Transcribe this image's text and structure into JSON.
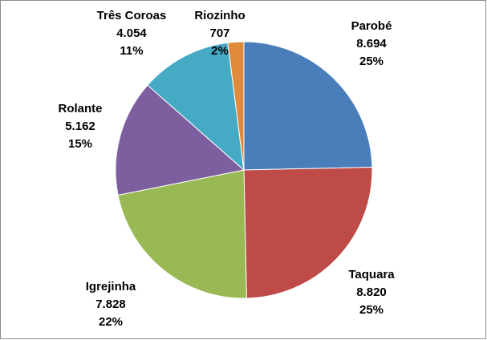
{
  "chart_data": {
    "type": "pie",
    "categories": [
      "Parobé",
      "Taquara",
      "Igrejinha",
      "Rolante",
      "Três Coroas",
      "Riozinho"
    ],
    "values": [
      8694,
      8820,
      7828,
      5162,
      4054,
      707
    ],
    "value_labels": [
      "8.694",
      "8.820",
      "7.828",
      "5.162",
      "4.054",
      "707"
    ],
    "percent_labels": [
      "25%",
      "25%",
      "22%",
      "15%",
      "11%",
      "2%"
    ],
    "colors": [
      "#4a7ebb",
      "#be4b48",
      "#98b954",
      "#7d5fa0",
      "#46aac5",
      "#e08a3c"
    ]
  }
}
